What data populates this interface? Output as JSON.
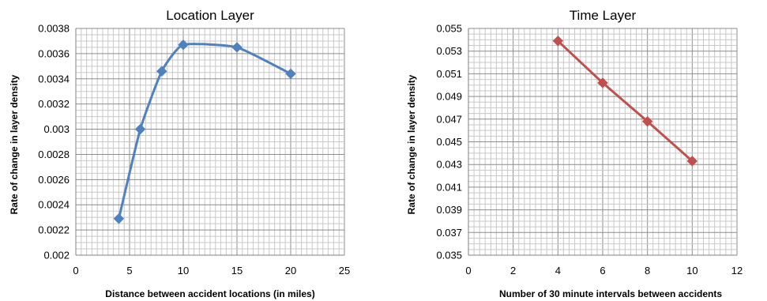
{
  "chart_data": [
    {
      "type": "line",
      "title": "Location Layer",
      "xlabel": "Distance between accident locations (in miles)",
      "ylabel": "Rate of change in layer density",
      "xlim": [
        0,
        25
      ],
      "ylim": [
        0.002,
        0.0038
      ],
      "xticks": [
        "0",
        "5",
        "10",
        "15",
        "20",
        "25"
      ],
      "yticks": [
        "0.002",
        "0.0022",
        "0.0024",
        "0.0026",
        "0.0028",
        "0.003",
        "0.0032",
        "0.0034",
        "0.0036",
        "0.0038"
      ],
      "grid": true,
      "smooth": true,
      "color": "#4F81BD",
      "marker": "diamond",
      "series": [
        {
          "x": [
            4,
            6,
            8,
            10,
            15,
            20
          ],
          "y": [
            0.00229,
            0.003,
            0.00346,
            0.00367,
            0.00365,
            0.00344
          ]
        }
      ]
    },
    {
      "type": "line",
      "title": "Time Layer",
      "xlabel": "Number of 30 minute intervals between accidents",
      "ylabel": "Rate of change in layer density",
      "xlim": [
        0,
        12
      ],
      "ylim": [
        0.035,
        0.055
      ],
      "xticks": [
        "0",
        "2",
        "4",
        "6",
        "8",
        "10",
        "12"
      ],
      "yticks": [
        "0.035",
        "0.037",
        "0.039",
        "0.041",
        "0.043",
        "0.045",
        "0.047",
        "0.049",
        "0.051",
        "0.053",
        "0.055"
      ],
      "grid": true,
      "smooth": false,
      "color": "#C0504D",
      "marker": "diamond",
      "series": [
        {
          "x": [
            4,
            6,
            8,
            10
          ],
          "y": [
            0.0539,
            0.0502,
            0.0468,
            0.0433
          ]
        }
      ]
    }
  ]
}
